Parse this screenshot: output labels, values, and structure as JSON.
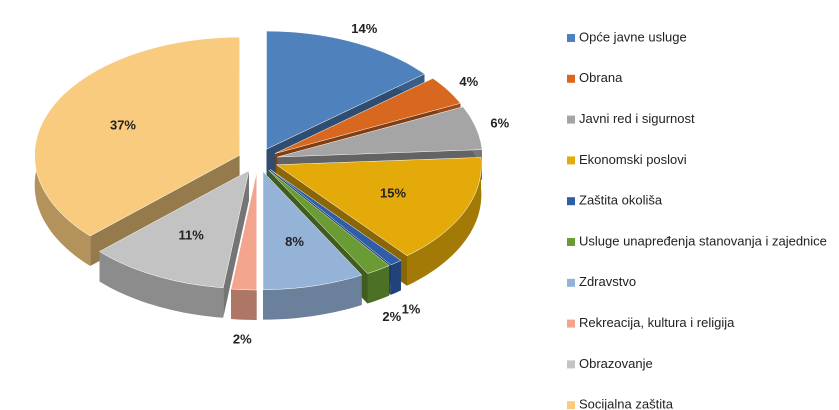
{
  "chart_data": {
    "type": "pie3d",
    "categories": [
      "Opće javne usluge",
      "Obrana",
      "Javni red i sigurnost",
      "Ekonomski poslovi",
      "Zaštita okoliša",
      "Usluge unapređenja stanovanja i zajednice",
      "Zdravstvo",
      "Rekreacija, kultura i religija",
      "Obrazovanje",
      "Socijalna zaštita"
    ],
    "values": [
      14,
      4,
      6,
      15,
      1,
      2,
      8,
      2,
      11,
      37
    ],
    "value_labels": [
      "14%",
      "4%",
      "6%",
      "15%",
      "1%",
      "2%",
      "8%",
      "2%",
      "11%",
      "37%"
    ],
    "colors": [
      "#4f81bd",
      "#d8681f",
      "#a5a5a5",
      "#e4aa0a",
      "#2f5da8",
      "#6a9b34",
      "#95b3d7",
      "#f2a48c",
      "#c3c3c3",
      "#f8cb7e"
    ],
    "legend": "right"
  }
}
